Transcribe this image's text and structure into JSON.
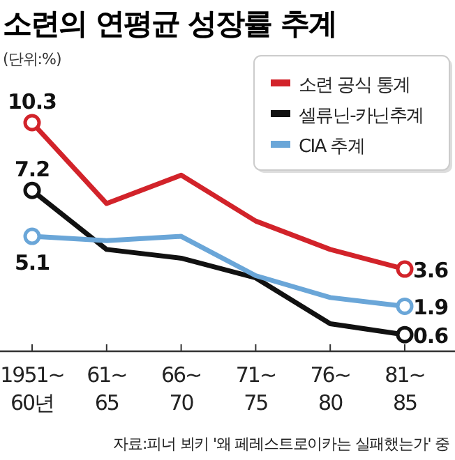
{
  "chart_data": {
    "type": "line",
    "title": "소련의 연평균 성장률 추계",
    "subtitle": "(단위:%)",
    "categories": [
      "1951~\n60년",
      "61~\n65",
      "66~\n70",
      "71~\n75",
      "76~\n80",
      "81~\n85"
    ],
    "series": [
      {
        "name": "소련 공식 통계",
        "color": "#d2232a",
        "values": [
          10.3,
          6.6,
          7.9,
          5.8,
          4.5,
          3.6
        ],
        "value_labels": [
          "10.3",
          null,
          null,
          null,
          null,
          "3.6"
        ]
      },
      {
        "name": "셀류닌-카닌추계",
        "color": "#111111",
        "values": [
          7.2,
          4.5,
          4.1,
          3.2,
          1.1,
          0.6
        ],
        "value_labels": [
          "7.2",
          null,
          null,
          null,
          null,
          "0.6"
        ]
      },
      {
        "name": "CIA 추계",
        "color": "#6aa6d8",
        "values": [
          5.1,
          4.9,
          5.1,
          3.3,
          2.3,
          1.9
        ],
        "value_labels": [
          "5.1",
          null,
          null,
          null,
          null,
          "1.9"
        ]
      }
    ],
    "legend": "top right",
    "annotations": [
      "자료:피너 뵈키 '왜 페레스트로이카는 실패했는가' 중"
    ]
  }
}
